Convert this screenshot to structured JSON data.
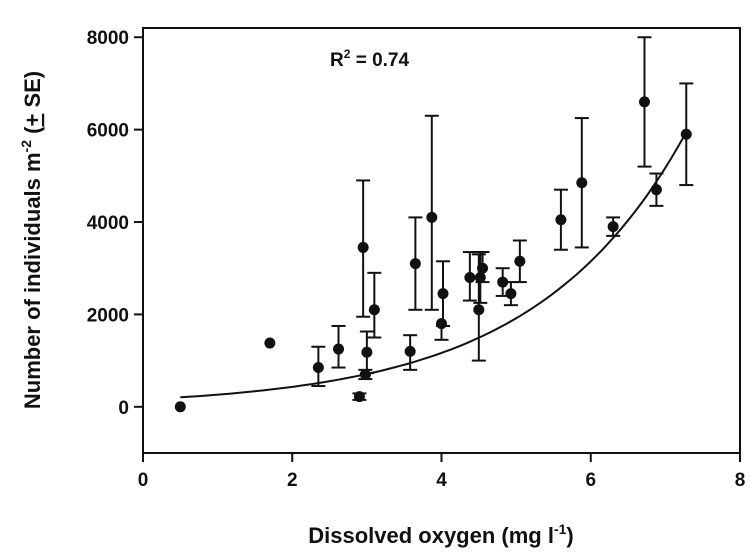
{
  "chart_data": {
    "type": "scatter",
    "xlabel": "Dissolved oxygen (mg l",
    "xlabel_sup": "-1",
    "xlabel_end": ")",
    "ylabel": "Number of individuals m",
    "ylabel_sup": "-2",
    "ylabel_end": " (",
    "ylabel_pm": "+",
    "ylabel_tail": " SE)",
    "xlim": [
      0,
      8
    ],
    "ylim": [
      -1000,
      8200
    ],
    "xticks": [
      0,
      2,
      4,
      6,
      8
    ],
    "yticks": [
      0,
      2000,
      4000,
      6000,
      8000
    ],
    "annotation": {
      "prefix": "R",
      "sup": "2",
      "suffix": " = 0.74"
    },
    "points": [
      {
        "x": 0.5,
        "y": 0,
        "se_low": 0,
        "se_high": 0
      },
      {
        "x": 1.7,
        "y": 1380,
        "se_low": 0,
        "se_high": 0
      },
      {
        "x": 2.35,
        "y": 850,
        "se_low": 400,
        "se_high": 450
      },
      {
        "x": 2.62,
        "y": 1250,
        "se_low": 400,
        "se_high": 500
      },
      {
        "x": 2.9,
        "y": 220,
        "se_low": 70,
        "se_high": 70
      },
      {
        "x": 2.95,
        "y": 3450,
        "se_low": 1500,
        "se_high": 1450
      },
      {
        "x": 2.98,
        "y": 700,
        "se_low": 100,
        "se_high": 100
      },
      {
        "x": 3.0,
        "y": 1180,
        "se_low": 450,
        "se_high": 450
      },
      {
        "x": 3.1,
        "y": 2100,
        "se_low": 600,
        "se_high": 800
      },
      {
        "x": 3.58,
        "y": 1200,
        "se_low": 400,
        "se_high": 350
      },
      {
        "x": 3.65,
        "y": 3100,
        "se_low": 1000,
        "se_high": 1000
      },
      {
        "x": 3.87,
        "y": 4100,
        "se_low": 2000,
        "se_high": 2200
      },
      {
        "x": 4.0,
        "y": 1800,
        "se_low": 350,
        "se_high": 0
      },
      {
        "x": 4.02,
        "y": 2450,
        "se_low": 700,
        "se_high": 700
      },
      {
        "x": 4.38,
        "y": 2800,
        "se_low": 500,
        "se_high": 550
      },
      {
        "x": 4.5,
        "y": 2100,
        "se_low": 1100,
        "se_high": 1200
      },
      {
        "x": 4.52,
        "y": 2800,
        "se_low": 550,
        "se_high": 550
      },
      {
        "x": 4.55,
        "y": 3000,
        "se_low": 300,
        "se_high": 350
      },
      {
        "x": 4.82,
        "y": 2700,
        "se_low": 300,
        "se_high": 300
      },
      {
        "x": 4.93,
        "y": 2450,
        "se_low": 250,
        "se_high": 250
      },
      {
        "x": 5.05,
        "y": 3150,
        "se_low": 450,
        "se_high": 450
      },
      {
        "x": 5.6,
        "y": 4050,
        "se_low": 650,
        "se_high": 650
      },
      {
        "x": 5.88,
        "y": 4850,
        "se_low": 1400,
        "se_high": 1400
      },
      {
        "x": 6.3,
        "y": 3900,
        "se_low": 200,
        "se_high": 200
      },
      {
        "x": 6.72,
        "y": 6600,
        "se_low": 1400,
        "se_high": 1400
      },
      {
        "x": 6.88,
        "y": 4700,
        "se_low": 350,
        "se_high": 350
      },
      {
        "x": 7.28,
        "y": 5900,
        "se_low": 1100,
        "se_high": 1100
      }
    ],
    "fit": {
      "type": "exponential",
      "a": 160,
      "b": 0.4966,
      "x_range": [
        0.5,
        7.25
      ]
    }
  }
}
